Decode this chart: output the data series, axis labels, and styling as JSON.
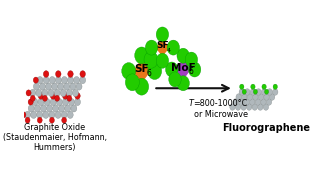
{
  "bg_color": "#ffffff",
  "label_go": "Graphite Oxide\n(Staudenmaier, Hofmann,\nHummers)",
  "label_middle_italic": "T",
  "label_middle": "=800-1000°C\nor Microwave",
  "label_fg": "Fluorographene",
  "sf6_label": "SF",
  "sf6_sub": "6",
  "sf4_label": "SF",
  "sf4_sub": "4",
  "mof6_label": "MoF",
  "mof6_sub": "6",
  "orange_color": "#e8761a",
  "purple_color": "#a040c0",
  "green_color": "#22cc00",
  "red_color": "#dd1111",
  "gray_color": "#b0b8bc",
  "gray_edge": "#808888",
  "dark_gray": "#707878",
  "arrow_color": "#111111",
  "label_fontsize": 5.8,
  "mol_fontsize": 7.5,
  "bold_label_fontsize": 7.0
}
